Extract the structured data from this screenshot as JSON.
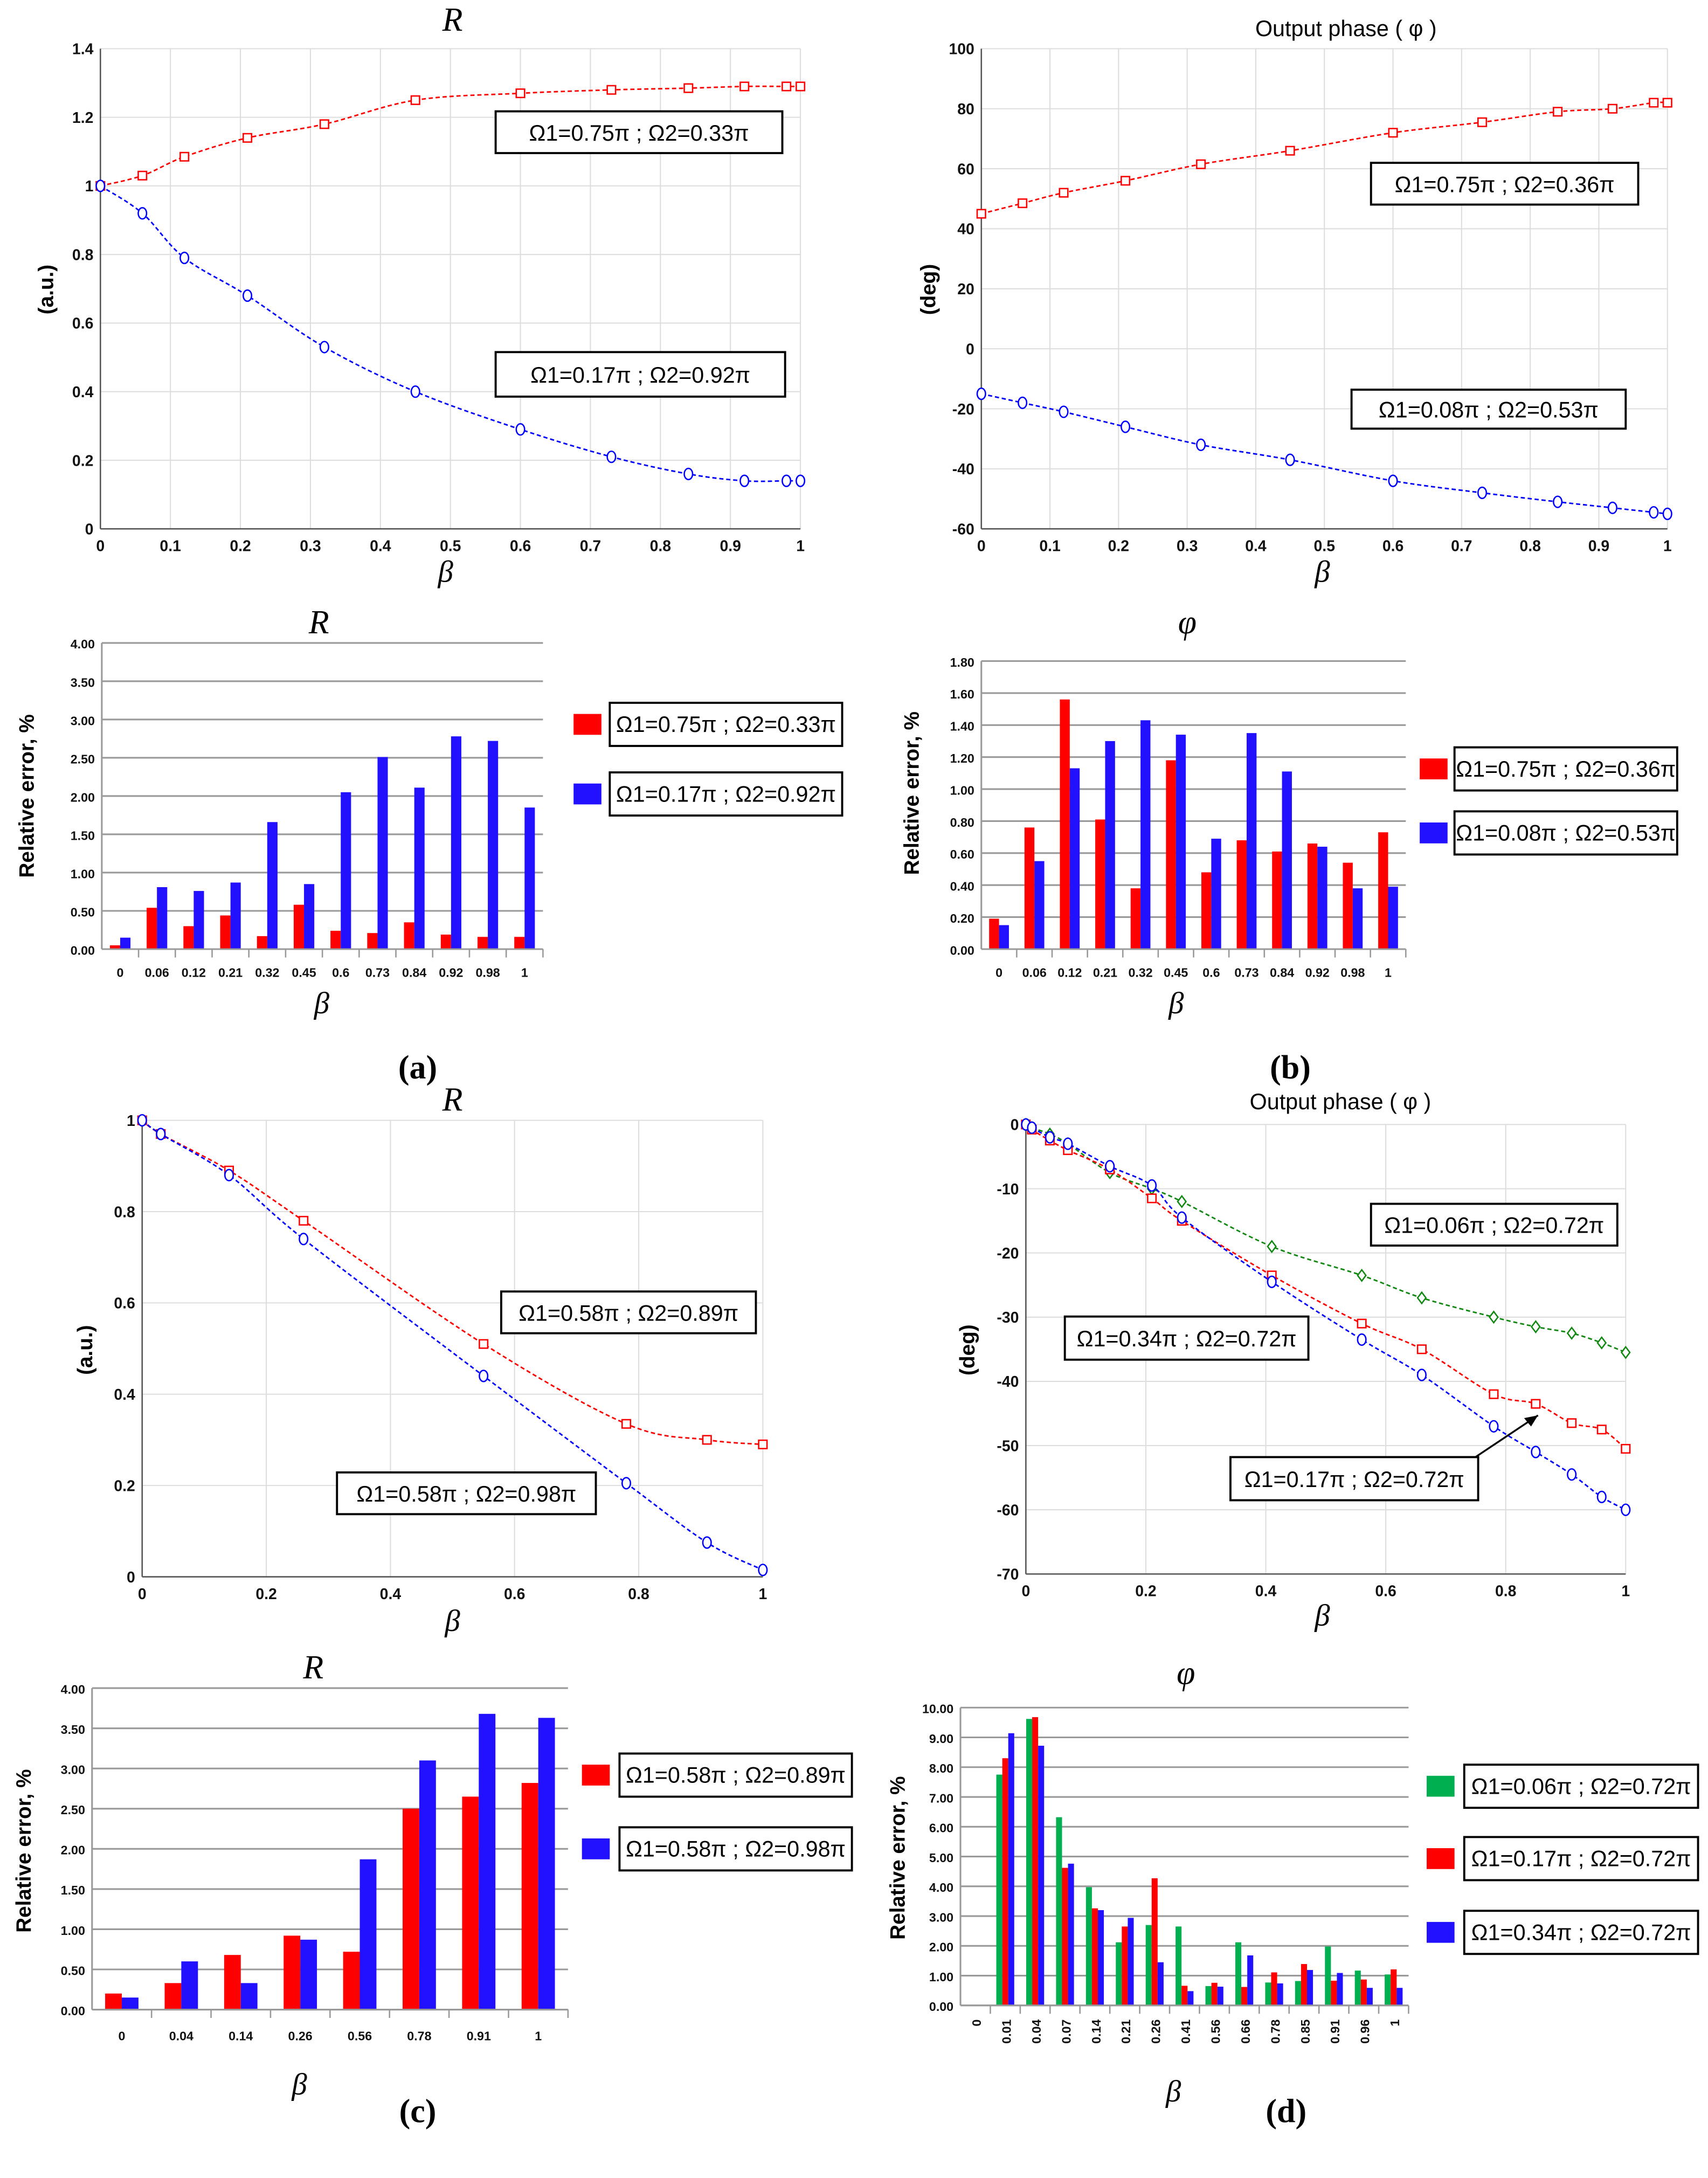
{
  "panel_labels": [
    "(a)",
    "(b)",
    "(c)",
    "(d)"
  ],
  "chart_data": [
    {
      "type": "line",
      "title": "R",
      "xlabel": "β",
      "ylabel": "(a.u.)",
      "xlim": [
        0,
        1
      ],
      "ylim": [
        0,
        1.4
      ],
      "xticks": [
        0,
        0.1,
        0.2,
        0.3,
        0.4,
        0.5,
        0.6,
        0.7,
        0.8,
        0.9,
        1
      ],
      "yticks": [
        0,
        0.2,
        0.4,
        0.6,
        0.8,
        1,
        1.2,
        1.4
      ],
      "grid": true,
      "series": [
        {
          "name": "Ω1=0.75π ; Ω2=0.33π",
          "color": "#ff0000",
          "marker": "square",
          "x": [
            0,
            0.06,
            0.12,
            0.21,
            0.32,
            0.45,
            0.6,
            0.73,
            0.84,
            0.92,
            0.98,
            1
          ],
          "y": [
            1,
            1.03,
            1.085,
            1.14,
            1.18,
            1.25,
            1.27,
            1.28,
            1.285,
            1.29,
            1.29,
            1.29
          ]
        },
        {
          "name": "Ω1=0.17π ; Ω2=0.92π",
          "color": "#0000ff",
          "marker": "circle",
          "x": [
            0,
            0.06,
            0.12,
            0.21,
            0.32,
            0.45,
            0.6,
            0.73,
            0.84,
            0.92,
            0.98,
            1
          ],
          "y": [
            1,
            0.92,
            0.79,
            0.68,
            0.53,
            0.4,
            0.29,
            0.21,
            0.16,
            0.14,
            0.14,
            0.14
          ]
        }
      ]
    },
    {
      "type": "line",
      "title": "Output phase ( φ )",
      "xlabel": "β",
      "ylabel": "(deg)",
      "xlim": [
        0,
        1
      ],
      "ylim": [
        -60,
        100
      ],
      "xticks": [
        0,
        0.1,
        0.2,
        0.3,
        0.4,
        0.5,
        0.6,
        0.7,
        0.8,
        0.9,
        1
      ],
      "yticks": [
        -60,
        -40,
        -20,
        0,
        20,
        40,
        60,
        80,
        100
      ],
      "grid": true,
      "series": [
        {
          "name": "Ω1=0.75π ; Ω2=0.36π",
          "color": "#ff0000",
          "marker": "square",
          "x": [
            0,
            0.06,
            0.12,
            0.21,
            0.32,
            0.45,
            0.6,
            0.73,
            0.84,
            0.92,
            0.98,
            1
          ],
          "y": [
            45,
            48.5,
            52,
            56,
            61.5,
            66,
            72,
            75.5,
            79,
            80,
            82,
            82
          ]
        },
        {
          "name": "Ω1=0.08π ; Ω2=0.53π",
          "color": "#0000ff",
          "marker": "circle",
          "x": [
            0,
            0.06,
            0.12,
            0.21,
            0.32,
            0.45,
            0.6,
            0.73,
            0.84,
            0.92,
            0.98,
            1
          ],
          "y": [
            -15,
            -18,
            -21,
            -26,
            -32,
            -37,
            -44,
            -48,
            -51,
            -53,
            -54.5,
            -55
          ]
        }
      ]
    },
    {
      "type": "bar",
      "title": "R",
      "xlabel": "β",
      "ylabel": "Relative error, %",
      "ylim": [
        0,
        4
      ],
      "yticks": [
        0,
        0.5,
        1,
        1.5,
        2,
        2.5,
        3,
        3.5,
        4
      ],
      "ydec": 2,
      "categories": [
        "0",
        "0.06",
        "0.12",
        "0.21",
        "0.32",
        "0.45",
        "0.6",
        "0.73",
        "0.84",
        "0.92",
        "0.98",
        "1"
      ],
      "series": [
        {
          "name": "Ω1=0.75π ; Ω2=0.33π",
          "color": "#ff0000",
          "values": [
            0.05,
            0.54,
            0.3,
            0.44,
            0.17,
            0.58,
            0.24,
            0.21,
            0.35,
            0.19,
            0.16,
            0.16
          ]
        },
        {
          "name": "Ω1=0.17π ; Ω2=0.92π",
          "color": "#2211ff",
          "values": [
            0.15,
            0.81,
            0.76,
            0.87,
            1.66,
            0.85,
            2.05,
            2.51,
            2.11,
            2.78,
            2.72,
            1.85
          ]
        }
      ]
    },
    {
      "type": "bar",
      "title": "φ",
      "xlabel": "β",
      "ylabel": "Relative error, %",
      "ylim": [
        0,
        1.8
      ],
      "yticks": [
        0,
        0.2,
        0.4,
        0.6,
        0.8,
        1,
        1.2,
        1.4,
        1.6,
        1.8
      ],
      "ydec": 2,
      "categories": [
        "0",
        "0.06",
        "0.12",
        "0.21",
        "0.32",
        "0.45",
        "0.6",
        "0.73",
        "0.84",
        "0.92",
        "0.98",
        "1"
      ],
      "series": [
        {
          "name": "Ω1=0.75π ; Ω2=0.36π",
          "color": "#ff0000",
          "values": [
            0.19,
            0.76,
            1.56,
            0.81,
            0.38,
            1.18,
            0.48,
            0.68,
            0.61,
            0.66,
            0.54,
            0.73
          ]
        },
        {
          "name": "Ω1=0.08π ; Ω2=0.53π",
          "color": "#2211ff",
          "values": [
            0.15,
            0.55,
            1.13,
            1.3,
            1.43,
            1.34,
            0.69,
            1.35,
            1.11,
            0.64,
            0.38,
            0.39
          ]
        }
      ]
    },
    {
      "type": "line",
      "title": "R",
      "xlabel": "β",
      "ylabel": "(a.u.)",
      "xlim": [
        0,
        1
      ],
      "ylim": [
        0,
        1
      ],
      "xticks": [
        0,
        0.2,
        0.4,
        0.6,
        0.8,
        1
      ],
      "yticks": [
        0,
        0.2,
        0.4,
        0.6,
        0.8,
        1
      ],
      "grid": true,
      "series": [
        {
          "name": "Ω1=0.58π ; Ω2=0.89π",
          "color": "#ff0000",
          "marker": "square",
          "x": [
            0,
            0.03,
            0.14,
            0.26,
            0.55,
            0.78,
            0.91,
            1
          ],
          "y": [
            1,
            0.97,
            0.89,
            0.78,
            0.51,
            0.335,
            0.3,
            0.29
          ]
        },
        {
          "name": "Ω1=0.58π ; Ω2=0.98π",
          "color": "#0000ff",
          "marker": "circle",
          "x": [
            0,
            0.03,
            0.14,
            0.26,
            0.55,
            0.78,
            0.91,
            1
          ],
          "y": [
            1,
            0.97,
            0.88,
            0.74,
            0.44,
            0.205,
            0.075,
            0.015
          ]
        }
      ]
    },
    {
      "type": "line",
      "title": "Output phase ( φ )",
      "xlabel": "β",
      "ylabel": "(deg)",
      "xlim": [
        0,
        1
      ],
      "ylim": [
        -70,
        0
      ],
      "xticks": [
        0,
        0.2,
        0.4,
        0.6,
        0.8,
        1
      ],
      "yticks": [
        -70,
        -60,
        -50,
        -40,
        -30,
        -20,
        -10,
        0
      ],
      "grid": true,
      "series": [
        {
          "name": "Ω1=0.06π ; Ω2=0.72π",
          "color": "#118811",
          "marker": "diamond",
          "x": [
            0,
            0.01,
            0.04,
            0.07,
            0.14,
            0.21,
            0.26,
            0.41,
            0.56,
            0.66,
            0.78,
            0.85,
            0.91,
            0.96,
            1
          ],
          "y": [
            0,
            -0.5,
            -1.5,
            -3,
            -7.5,
            -10,
            -12,
            -19,
            -23.5,
            -27,
            -30,
            -31.5,
            -32.5,
            -34,
            -35.5
          ]
        },
        {
          "name": "Ω1=0.17π ; Ω2=0.72π",
          "color": "#ff0000",
          "marker": "square",
          "x": [
            0,
            0.01,
            0.04,
            0.07,
            0.14,
            0.21,
            0.26,
            0.41,
            0.56,
            0.66,
            0.78,
            0.85,
            0.91,
            0.96,
            1
          ],
          "y": [
            0,
            -0.8,
            -2.5,
            -4,
            -7,
            -11.5,
            -15,
            -23.5,
            -31,
            -35,
            -42,
            -43.5,
            -46.5,
            -47.5,
            -50.5
          ]
        },
        {
          "name": "Ω1=0.34π ; Ω2=0.72π",
          "color": "#0000ff",
          "marker": "circle",
          "x": [
            0,
            0.01,
            0.04,
            0.07,
            0.14,
            0.21,
            0.26,
            0.41,
            0.56,
            0.66,
            0.78,
            0.85,
            0.91,
            0.96,
            1
          ],
          "y": [
            0,
            -0.5,
            -2,
            -3,
            -6.5,
            -9.5,
            -14.5,
            -24.5,
            -33.5,
            -39,
            -47,
            -51,
            -54.5,
            -58,
            -60
          ]
        }
      ]
    },
    {
      "type": "bar",
      "title": "R",
      "xlabel": "β",
      "ylabel": "Relative error, %",
      "ylim": [
        0,
        4
      ],
      "yticks": [
        0,
        0.5,
        1,
        1.5,
        2,
        2.5,
        3,
        3.5,
        4
      ],
      "ydec": 2,
      "categories": [
        "0",
        "0.04",
        "0.14",
        "0.26",
        "0.56",
        "0.78",
        "0.91",
        "1"
      ],
      "series": [
        {
          "name": "Ω1=0.58π ; Ω2=0.89π",
          "color": "#ff0000",
          "values": [
            0.2,
            0.33,
            0.68,
            0.92,
            0.72,
            2.5,
            2.65,
            2.82
          ]
        },
        {
          "name": "Ω1=0.58π ; Ω2=0.98π",
          "color": "#2211ff",
          "values": [
            0.15,
            0.6,
            0.33,
            0.87,
            1.87,
            3.1,
            3.68,
            3.63
          ]
        }
      ]
    },
    {
      "type": "bar",
      "title": "φ",
      "xlabel": "β",
      "ylabel": "Relative error, %",
      "ylim": [
        0,
        10
      ],
      "yticks": [
        0,
        1,
        2,
        3,
        4,
        5,
        6,
        7,
        8,
        9,
        10
      ],
      "ydec": 2,
      "categories": [
        "0",
        "0.01",
        "0.04",
        "0.07",
        "0.14",
        "0.21",
        "0.26",
        "0.41",
        "0.56",
        "0.66",
        "0.78",
        "0.85",
        "0.91",
        "0.96",
        "1"
      ],
      "series": [
        {
          "name": "Ω1=0.06π ; Ω2=0.72π",
          "color": "#00b050",
          "values": [
            0,
            7.75,
            9.62,
            6.32,
            3.97,
            2.12,
            2.7,
            2.65,
            0.65,
            2.12,
            0.77,
            0.82,
            1.98,
            1.17,
            1.04
          ]
        },
        {
          "name": "Ω1=0.17π ; Ω2=0.72π",
          "color": "#ff0000",
          "values": [
            0,
            8.3,
            9.68,
            4.62,
            3.26,
            2.65,
            4.27,
            0.66,
            0.76,
            0.62,
            1.11,
            1.39,
            0.83,
            0.87,
            1.21
          ]
        },
        {
          "name": "Ω1=0.34π ; Ω2=0.72π",
          "color": "#2211ff",
          "values": [
            0,
            9.14,
            8.72,
            4.76,
            3.2,
            2.94,
            1.45,
            0.48,
            0.63,
            1.68,
            0.74,
            1.19,
            1.09,
            0.59,
            0.59
          ]
        }
      ]
    }
  ]
}
